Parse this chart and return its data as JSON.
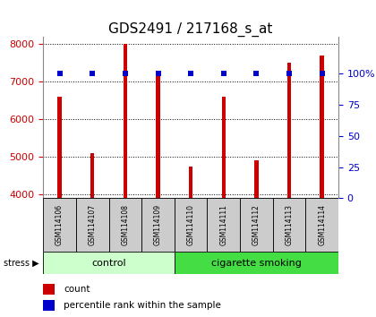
{
  "title": "GDS2491 / 217168_s_at",
  "samples": [
    "GSM114106",
    "GSM114107",
    "GSM114108",
    "GSM114109",
    "GSM114110",
    "GSM114111",
    "GSM114112",
    "GSM114113",
    "GSM114114"
  ],
  "counts": [
    6600,
    5100,
    8000,
    7200,
    4750,
    6600,
    4900,
    7500,
    7700
  ],
  "percentiles": [
    100,
    100,
    100,
    100,
    100,
    100,
    100,
    100,
    100
  ],
  "ylim_left": [
    3900,
    8200
  ],
  "ylim_right": [
    0,
    130
  ],
  "yticks_left": [
    4000,
    5000,
    6000,
    7000,
    8000
  ],
  "yticks_right": [
    0,
    25,
    50,
    75,
    100
  ],
  "ytick_labels_right": [
    "0",
    "25",
    "50",
    "75",
    "100%"
  ],
  "bar_color": "#cc0000",
  "percentile_color": "#0000cc",
  "groups": [
    {
      "label": "control",
      "start": 0,
      "end": 3
    },
    {
      "label": "cigarette smoking",
      "start": 4,
      "end": 8
    }
  ],
  "group_colors": [
    "#ccffcc",
    "#44dd44"
  ],
  "stress_label": "stress",
  "legend_count_label": "count",
  "legend_percentile_label": "percentile rank within the sample",
  "title_fontsize": 11,
  "tick_fontsize": 8,
  "bar_width": 0.12,
  "sample_box_color": "#cccccc",
  "background_color": "#ffffff"
}
